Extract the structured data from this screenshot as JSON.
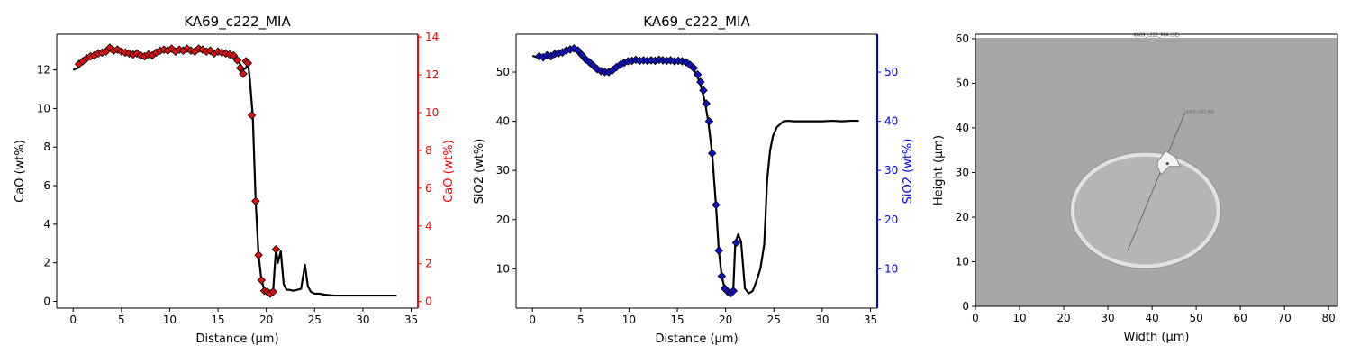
{
  "chart_data": [
    {
      "type": "line",
      "title": "KA69_c222_MIA",
      "xlabel": "Distance (µm)",
      "ylabel": "CaO (wt%)",
      "ylabel_right": "CaO (wt%)",
      "xlim": [
        -1.7,
        35.7
      ],
      "ylim": [
        -0.35,
        13.85
      ],
      "ylim_right": [
        -0.35,
        14.15
      ],
      "xticks": [
        0,
        5,
        10,
        15,
        20,
        25,
        30,
        35
      ],
      "yticks": [
        0,
        2,
        4,
        6,
        8,
        10,
        12
      ],
      "yticks_right": [
        0,
        2,
        4,
        6,
        8,
        10,
        12,
        14
      ],
      "colors": {
        "line": "#000000",
        "marker": "#e01010",
        "right_axis": "#ff0000"
      },
      "series": [
        {
          "x": [
            0,
            0.5,
            1,
            1.5,
            2,
            2.5,
            3,
            3.5,
            4,
            4.5,
            5,
            5.5,
            6,
            6.5,
            7,
            7.5,
            8,
            8.5,
            9,
            9.5,
            10,
            10.5,
            11,
            11.5,
            12,
            12.5,
            13,
            13.5,
            14,
            14.5,
            15,
            15.5,
            16,
            16.5,
            17,
            17.3,
            17.6,
            17.9,
            18.1,
            18.3,
            18.6,
            18.9,
            19.2,
            19.5,
            19.8,
            20.1,
            20.4,
            20.7,
            21,
            21.2,
            21.5,
            21.8,
            22.1,
            22.4,
            22.8,
            23.2,
            23.6,
            24,
            24.3,
            24.6,
            25,
            25.5,
            26,
            27,
            28,
            29,
            30,
            31,
            32,
            33,
            33.5
          ],
          "values": [
            12.0,
            12.1,
            12.4,
            12.6,
            12.7,
            12.8,
            12.9,
            12.95,
            13.1,
            13.05,
            13.0,
            12.95,
            12.9,
            12.85,
            12.8,
            12.8,
            12.75,
            12.8,
            12.9,
            13.0,
            13.05,
            13.0,
            13.0,
            12.95,
            13.1,
            13.0,
            12.95,
            13.05,
            13.0,
            12.9,
            12.95,
            12.9,
            12.85,
            12.8,
            12.6,
            12.3,
            12.0,
            12.1,
            12.4,
            11.5,
            9.6,
            5.2,
            2.4,
            1.1,
            0.6,
            0.5,
            0.4,
            0.5,
            2.7,
            2.0,
            2.6,
            0.9,
            0.6,
            0.6,
            0.55,
            0.6,
            0.65,
            1.9,
            0.8,
            0.5,
            0.4,
            0.4,
            0.35,
            0.3,
            0.3,
            0.3,
            0.3,
            0.3,
            0.3,
            0.3,
            0.3
          ]
        }
      ],
      "markers": {
        "x": [
          0.6,
          1,
          1.4,
          1.8,
          2.2,
          2.6,
          3,
          3.4,
          3.8,
          4.2,
          4.6,
          5,
          5.4,
          5.8,
          6.2,
          6.6,
          7,
          7.4,
          7.8,
          8.2,
          8.6,
          9,
          9.4,
          9.8,
          10.2,
          10.6,
          11,
          11.4,
          11.8,
          12.2,
          12.6,
          13,
          13.4,
          13.8,
          14.2,
          14.6,
          15,
          15.4,
          15.8,
          16.2,
          16.6,
          17,
          17.3,
          17.6,
          17.9,
          18.1,
          18.5,
          18.9,
          19.2,
          19.5,
          19.8,
          20.1,
          20.4,
          20.7,
          21
        ],
        "values": [
          12.3,
          12.45,
          12.6,
          12.7,
          12.75,
          12.85,
          12.9,
          12.95,
          13.15,
          13.0,
          13.05,
          12.95,
          12.9,
          12.85,
          12.8,
          12.85,
          12.75,
          12.7,
          12.8,
          12.75,
          12.9,
          13.0,
          13.05,
          13.0,
          13.1,
          12.95,
          13.05,
          13.0,
          13.1,
          13.0,
          12.95,
          13.1,
          13.05,
          12.95,
          13.0,
          12.85,
          12.95,
          12.9,
          12.85,
          12.8,
          12.75,
          12.5,
          12.1,
          11.8,
          12.45,
          12.35,
          9.65,
          5.2,
          2.4,
          1.1,
          0.55,
          0.5,
          0.4,
          0.5,
          2.7
        ]
      }
    },
    {
      "type": "line",
      "title": "KA69_c222_MIA",
      "xlabel": "Distance (µm)",
      "ylabel": "SiO2 (wt%)",
      "ylabel_right": "SiO2 (wt%)",
      "xlim": [
        -1.7,
        35.7
      ],
      "ylim": [
        2,
        57.7
      ],
      "ylim_right": [
        2,
        57.7
      ],
      "xticks": [
        0,
        5,
        10,
        15,
        20,
        25,
        30,
        35
      ],
      "yticks": [
        10,
        20,
        30,
        40,
        50
      ],
      "yticks_right": [
        10,
        20,
        30,
        40,
        50
      ],
      "colors": {
        "line": "#000000",
        "marker": "#1010c0",
        "right_axis": "#0000ff"
      },
      "series": [
        {
          "x": [
            0,
            0.5,
            1,
            1.5,
            2,
            2.5,
            3,
            3.5,
            4,
            4.5,
            5,
            5.5,
            6,
            6.5,
            7,
            7.5,
            8,
            8.5,
            9,
            9.5,
            10,
            10.5,
            11,
            11.5,
            12,
            12.5,
            13,
            13.5,
            14,
            14.5,
            15,
            15.5,
            16,
            16.5,
            17,
            17.3,
            17.6,
            17.9,
            18.2,
            18.6,
            19,
            19.3,
            19.6,
            19.9,
            20.2,
            20.5,
            20.8,
            21,
            21.3,
            21.6,
            22,
            22.4,
            22.8,
            23.2,
            23.6,
            24,
            24.3,
            24.6,
            24.9,
            25.3,
            25.7,
            26,
            26.5,
            27,
            28,
            29,
            30,
            31,
            32,
            33,
            33.8
          ],
          "values": [
            53.3,
            53.0,
            53.2,
            53.5,
            53.6,
            54.0,
            54.3,
            54.6,
            54.9,
            54.7,
            53.8,
            52.5,
            51.8,
            51.0,
            50.2,
            50.0,
            50.0,
            50.5,
            51.2,
            51.8,
            52.0,
            52.3,
            52.4,
            52.5,
            52.3,
            52.4,
            52.4,
            52.3,
            52.5,
            52.4,
            52.3,
            52.2,
            51.8,
            51.0,
            49.5,
            48.0,
            46.0,
            43.5,
            40.0,
            33.5,
            23.0,
            13.5,
            8.5,
            6.0,
            5.0,
            5.0,
            6.0,
            15.3,
            17.0,
            15.5,
            6.0,
            5.0,
            5.5,
            7.5,
            10.0,
            15.0,
            28.0,
            34.0,
            37.0,
            38.8,
            39.5,
            40.0,
            40.1,
            40.0,
            40.0,
            40.0,
            40.0,
            40.1,
            40.0,
            40.1,
            40.1
          ]
        }
      ],
      "markers": {
        "x": [
          0.7,
          1.1,
          1.5,
          1.9,
          2.3,
          2.7,
          3.1,
          3.5,
          3.9,
          4.3,
          4.7,
          5.1,
          5.5,
          5.9,
          6.3,
          6.7,
          7.1,
          7.5,
          7.9,
          8.3,
          8.7,
          9.1,
          9.5,
          9.9,
          10.3,
          10.7,
          11.1,
          11.5,
          11.9,
          12.3,
          12.7,
          13.1,
          13.5,
          13.9,
          14.3,
          14.7,
          15.1,
          15.5,
          15.9,
          16.3,
          16.7,
          17.1,
          17.4,
          17.7,
          18,
          18.3,
          18.6,
          19,
          19.3,
          19.6,
          19.9,
          20.2,
          20.5,
          20.8,
          21.1
        ],
        "values": [
          53.2,
          53.0,
          53.4,
          53.2,
          53.7,
          53.8,
          54.0,
          54.4,
          54.6,
          54.8,
          54.4,
          53.5,
          52.6,
          52.0,
          51.3,
          50.6,
          50.2,
          50.0,
          50.0,
          50.4,
          51.0,
          51.5,
          51.9,
          52.2,
          52.3,
          52.5,
          52.3,
          52.4,
          52.3,
          52.4,
          52.3,
          52.5,
          52.4,
          52.3,
          52.4,
          52.2,
          52.3,
          52.2,
          52.0,
          51.5,
          50.8,
          49.5,
          48.0,
          46.3,
          43.6,
          40.0,
          33.5,
          23.0,
          13.7,
          8.5,
          6.0,
          5.4,
          5.0,
          5.5,
          15.3
        ]
      }
    },
    {
      "type": "image",
      "xlabel": "Width (µm)",
      "ylabel": "Height (µm)",
      "xlim": [
        0,
        82
      ],
      "ylim": [
        0,
        61
      ],
      "xticks": [
        0,
        10,
        20,
        30,
        40,
        50,
        60,
        70,
        80
      ],
      "yticks": [
        0,
        10,
        20,
        30,
        40,
        50,
        60
      ],
      "image_top_caption": "KA69_c222_MIA (SE)",
      "image_annotation": "KA69_c222_MIA",
      "image_extent": {
        "x": [
          0,
          82
        ],
        "y": [
          0,
          60.2
        ]
      },
      "inclusion": {
        "cx": 38.5,
        "cy": 21.5,
        "rx": 16.5,
        "ry": 12.5
      },
      "crystal": {
        "cx": 43.5,
        "cy": 32.0
      },
      "transect": {
        "x1": 34.5,
        "y1": 12.5,
        "x2": 47.5,
        "y2": 43.5
      },
      "colors": {
        "background": "#a7a7a7",
        "inclusion_fill": "#b5b5b5",
        "inclusion_rim": "#e2e2e2",
        "crystal": "#f2f2f2",
        "transect": "#5a5a5a"
      }
    }
  ]
}
